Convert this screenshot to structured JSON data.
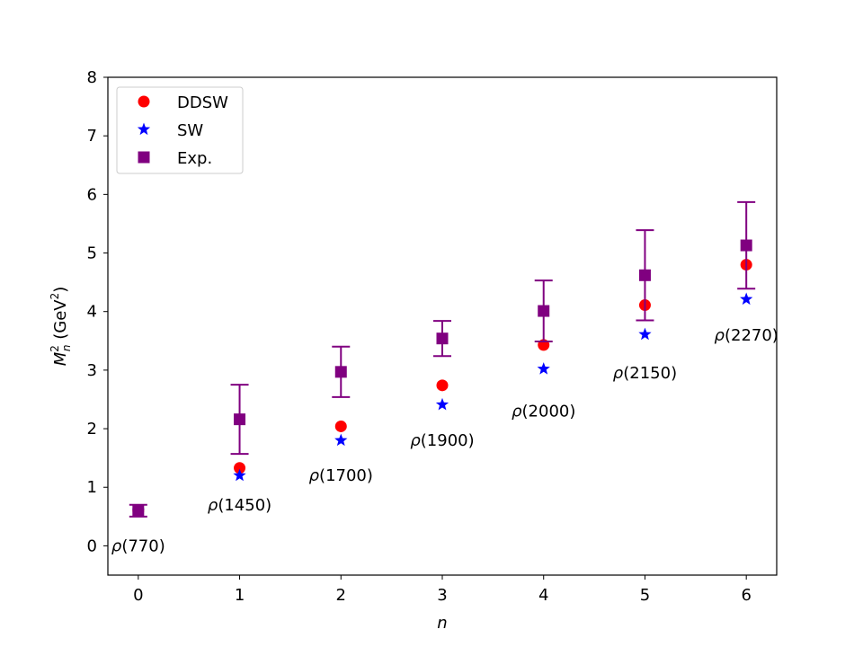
{
  "chart_data": {
    "type": "scatter",
    "title": "",
    "xlabel": "n",
    "ylabel": "M_n^2 (GeV^2)",
    "ylabel_parts": {
      "main": "M",
      "sup": "2",
      "sub": "n",
      "unit_open": " (GeV",
      "unit_sup": "2",
      "unit_close": ")"
    },
    "xlim": [
      -0.3,
      6.3
    ],
    "ylim": [
      -0.5,
      8
    ],
    "xticks": [
      0,
      1,
      2,
      3,
      4,
      5,
      6
    ],
    "yticks": [
      0,
      1,
      2,
      3,
      4,
      5,
      6,
      7,
      8
    ],
    "x": [
      0,
      1,
      2,
      3,
      4,
      5,
      6
    ],
    "series": [
      {
        "name": "DDSW",
        "marker": "circle",
        "color": "#ff0000",
        "values": [
          0.6,
          1.33,
          2.04,
          2.74,
          3.43,
          4.11,
          4.8
        ]
      },
      {
        "name": "SW",
        "marker": "star",
        "color": "#0000ff",
        "values": [
          0.6,
          1.2,
          1.8,
          2.41,
          3.02,
          3.61,
          4.21
        ]
      },
      {
        "name": "Exp.",
        "marker": "square",
        "color": "#800080",
        "values": [
          0.6,
          2.16,
          2.97,
          3.54,
          4.01,
          4.62,
          5.13
        ],
        "errors": [
          0.1,
          0.59,
          0.43,
          0.3,
          0.52,
          0.77,
          0.74
        ]
      }
    ],
    "annotations": [
      {
        "text": "ρ(770)",
        "x": 0,
        "y": 0.0
      },
      {
        "text": "ρ(1450)",
        "x": 1,
        "y": 0.7
      },
      {
        "text": "ρ(1700)",
        "x": 2,
        "y": 1.2
      },
      {
        "text": "ρ(1900)",
        "x": 3,
        "y": 1.8
      },
      {
        "text": "ρ(2000)",
        "x": 4,
        "y": 2.3
      },
      {
        "text": "ρ(2150)",
        "x": 5,
        "y": 2.95
      },
      {
        "text": "ρ(2270)",
        "x": 6,
        "y": 3.6
      }
    ],
    "legend_position": "top-left",
    "grid": false
  }
}
